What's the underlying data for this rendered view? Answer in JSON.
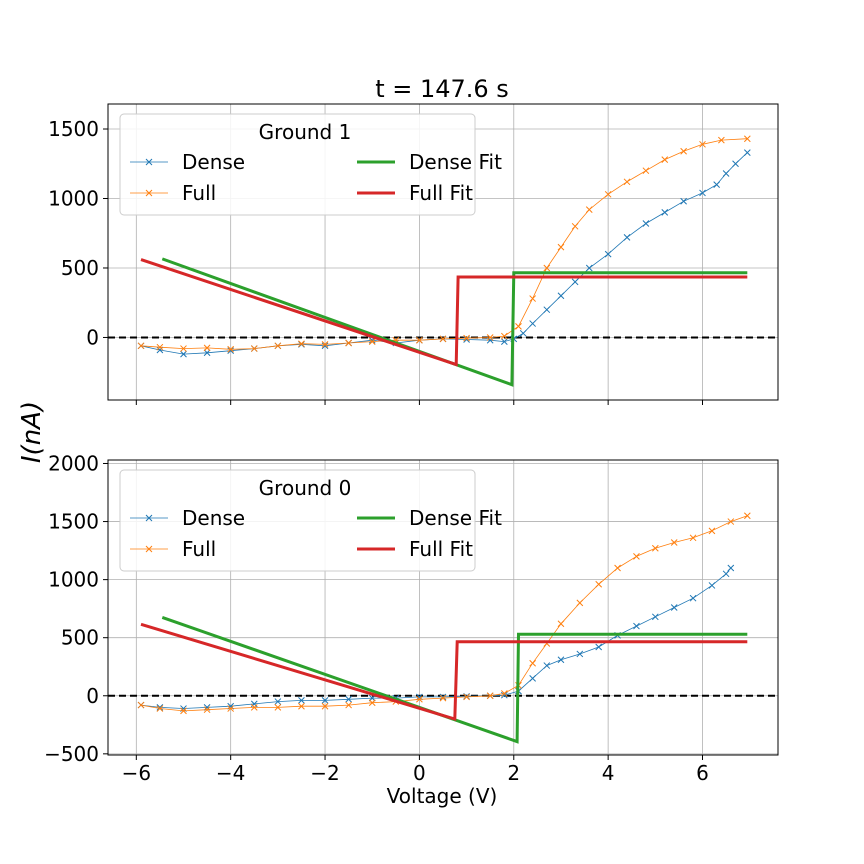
{
  "title": "t = 147.6 s",
  "xlabel": "Voltage (V)",
  "ylabel": "I(nA)",
  "colors": {
    "dense": "#1f77b4",
    "full": "#ff7f0e",
    "dense_fit": "#2ca02c",
    "full_fit": "#d62728"
  },
  "x_ticks": [
    "−6",
    "−4",
    "−2",
    "0",
    "2",
    "4",
    "6"
  ],
  "chart_data": [
    {
      "type": "line",
      "legend_title": "Ground 1",
      "legend_placement": "upper-left",
      "grid": true,
      "xlim": [
        -6.6,
        7.6
      ],
      "ylim": [
        -450,
        1680
      ],
      "y_ticks": [
        0,
        500,
        1000,
        1500
      ],
      "y_tick_labels": [
        "0",
        "500",
        "1000",
        "1500"
      ],
      "zero_line": 0,
      "legend": [
        "Dense",
        "Full",
        "Dense Fit",
        "Full Fit"
      ],
      "series": [
        {
          "name": "Dense",
          "kind": "markers",
          "points": [
            [
              -5.9,
              -60
            ],
            [
              -5.5,
              -90
            ],
            [
              -5.0,
              -120
            ],
            [
              -4.5,
              -110
            ],
            [
              -4.0,
              -95
            ],
            [
              -3.5,
              -80
            ],
            [
              -3.0,
              -60
            ],
            [
              -2.5,
              -50
            ],
            [
              -2.0,
              -60
            ],
            [
              -1.5,
              -40
            ],
            [
              -1.0,
              -20
            ],
            [
              -0.5,
              -40
            ],
            [
              0.0,
              -20
            ],
            [
              0.5,
              -10
            ],
            [
              1.0,
              -15
            ],
            [
              1.5,
              -20
            ],
            [
              1.8,
              -30
            ],
            [
              2.0,
              -10
            ],
            [
              2.2,
              30
            ],
            [
              2.4,
              100
            ],
            [
              2.7,
              200
            ],
            [
              3.0,
              300
            ],
            [
              3.3,
              400
            ],
            [
              3.6,
              500
            ],
            [
              4.0,
              600
            ],
            [
              4.4,
              720
            ],
            [
              4.8,
              820
            ],
            [
              5.2,
              900
            ],
            [
              5.6,
              980
            ],
            [
              6.0,
              1040
            ],
            [
              6.3,
              1100
            ],
            [
              6.5,
              1180
            ],
            [
              6.7,
              1250
            ],
            [
              6.95,
              1330
            ]
          ]
        },
        {
          "name": "Full",
          "kind": "markers",
          "points": [
            [
              -5.9,
              -60
            ],
            [
              -5.5,
              -70
            ],
            [
              -5.0,
              -80
            ],
            [
              -4.5,
              -75
            ],
            [
              -4.0,
              -85
            ],
            [
              -3.5,
              -80
            ],
            [
              -3.0,
              -60
            ],
            [
              -2.5,
              -45
            ],
            [
              -2.0,
              -50
            ],
            [
              -1.5,
              -40
            ],
            [
              -1.0,
              -30
            ],
            [
              -0.5,
              -20
            ],
            [
              0.0,
              -20
            ],
            [
              0.5,
              -10
            ],
            [
              1.0,
              -5
            ],
            [
              1.5,
              0
            ],
            [
              1.8,
              10
            ],
            [
              2.1,
              80
            ],
            [
              2.4,
              280
            ],
            [
              2.7,
              500
            ],
            [
              3.0,
              650
            ],
            [
              3.3,
              800
            ],
            [
              3.6,
              920
            ],
            [
              4.0,
              1030
            ],
            [
              4.4,
              1120
            ],
            [
              4.8,
              1200
            ],
            [
              5.2,
              1280
            ],
            [
              5.6,
              1340
            ],
            [
              6.0,
              1390
            ],
            [
              6.4,
              1420
            ],
            [
              6.95,
              1430
            ]
          ]
        },
        {
          "name": "Dense Fit",
          "kind": "line",
          "points": [
            [
              -5.45,
              565
            ],
            [
              1.96,
              -340
            ],
            [
              1.96,
              -340
            ],
            [
              2.0,
              465
            ],
            [
              6.95,
              465
            ]
          ]
        },
        {
          "name": "Full Fit",
          "kind": "line",
          "points": [
            [
              -5.9,
              560
            ],
            [
              0.78,
              -195
            ],
            [
              0.82,
              435
            ],
            [
              6.95,
              435
            ]
          ]
        }
      ]
    },
    {
      "type": "line",
      "legend_title": "Ground 0",
      "legend_placement": "upper-left",
      "grid": true,
      "xlim": [
        -6.6,
        7.6
      ],
      "ylim": [
        -510,
        2030
      ],
      "y_ticks": [
        -500,
        0,
        500,
        1000,
        1500,
        2000
      ],
      "y_tick_labels": [
        "−500",
        "0",
        "500",
        "1000",
        "1500",
        "2000"
      ],
      "zero_line": 0,
      "legend": [
        "Dense",
        "Full",
        "Dense Fit",
        "Full Fit"
      ],
      "series": [
        {
          "name": "Dense",
          "kind": "markers",
          "points": [
            [
              -5.9,
              -80
            ],
            [
              -5.5,
              -100
            ],
            [
              -5.0,
              -110
            ],
            [
              -4.5,
              -100
            ],
            [
              -4.0,
              -90
            ],
            [
              -3.5,
              -70
            ],
            [
              -3.0,
              -50
            ],
            [
              -2.5,
              -40
            ],
            [
              -2.0,
              -40
            ],
            [
              -1.5,
              -30
            ],
            [
              -1.0,
              -20
            ],
            [
              -0.5,
              -20
            ],
            [
              0.0,
              -10
            ],
            [
              0.5,
              -10
            ],
            [
              1.0,
              -5
            ],
            [
              1.5,
              0
            ],
            [
              1.8,
              5
            ],
            [
              2.1,
              40
            ],
            [
              2.4,
              150
            ],
            [
              2.7,
              260
            ],
            [
              3.0,
              310
            ],
            [
              3.4,
              360
            ],
            [
              3.8,
              420
            ],
            [
              4.2,
              520
            ],
            [
              4.6,
              600
            ],
            [
              5.0,
              680
            ],
            [
              5.4,
              760
            ],
            [
              5.8,
              840
            ],
            [
              6.2,
              950
            ],
            [
              6.5,
              1050
            ],
            [
              6.6,
              1100
            ]
          ]
        },
        {
          "name": "Full",
          "kind": "markers",
          "points": [
            [
              -5.9,
              -80
            ],
            [
              -5.5,
              -110
            ],
            [
              -5.0,
              -130
            ],
            [
              -4.5,
              -120
            ],
            [
              -4.0,
              -110
            ],
            [
              -3.5,
              -100
            ],
            [
              -3.0,
              -100
            ],
            [
              -2.5,
              -90
            ],
            [
              -2.0,
              -90
            ],
            [
              -1.5,
              -80
            ],
            [
              -1.0,
              -60
            ],
            [
              -0.5,
              -50
            ],
            [
              0.0,
              -30
            ],
            [
              0.5,
              -20
            ],
            [
              1.0,
              -10
            ],
            [
              1.5,
              0
            ],
            [
              1.8,
              20
            ],
            [
              2.1,
              90
            ],
            [
              2.4,
              280
            ],
            [
              2.7,
              450
            ],
            [
              3.0,
              620
            ],
            [
              3.4,
              800
            ],
            [
              3.8,
              960
            ],
            [
              4.2,
              1100
            ],
            [
              4.6,
              1200
            ],
            [
              5.0,
              1270
            ],
            [
              5.4,
              1320
            ],
            [
              5.8,
              1360
            ],
            [
              6.2,
              1420
            ],
            [
              6.6,
              1500
            ],
            [
              6.95,
              1550
            ]
          ]
        },
        {
          "name": "Dense Fit",
          "kind": "line",
          "points": [
            [
              -5.45,
              675
            ],
            [
              2.07,
              -395
            ],
            [
              2.1,
              530
            ],
            [
              6.95,
              530
            ]
          ]
        },
        {
          "name": "Full Fit",
          "kind": "line",
          "points": [
            [
              -5.9,
              615
            ],
            [
              0.75,
              -200
            ],
            [
              0.8,
              465
            ],
            [
              6.95,
              465
            ]
          ]
        }
      ]
    }
  ]
}
